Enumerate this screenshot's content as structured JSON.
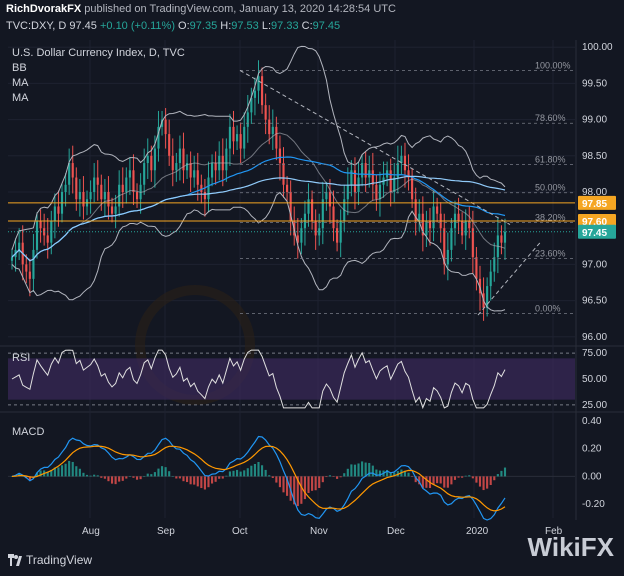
{
  "header": {
    "author": "RichDvorakFX",
    "published_text": "published on TradingView.com, January 13, 2020 14:28:54 UTC",
    "symbol": "TVC:DXY, D",
    "last": "97.45",
    "change": "+0.10 (+0.11%)",
    "open_label": "O:",
    "open": "97.35",
    "high_label": "H:",
    "high": "97.53",
    "low_label": "L:",
    "low": "97.33",
    "close_label": "C:",
    "close": "97.45"
  },
  "pane_labels": {
    "title": "U.S. Dollar Currency Index, D, TVC",
    "bb": "BB",
    "ma1": "MA",
    "ma2": "MA",
    "rsi": "RSI",
    "macd": "MACD"
  },
  "footer": {
    "brand": "TradingView",
    "watermark": "WikiFX"
  },
  "colors": {
    "background": "#131722",
    "up": "#26a69a",
    "down": "#ef5350",
    "bb": "#b2b5be",
    "ma_fast": "#2196f3",
    "ma_slow": "#90caf9",
    "resistance": "#f5a623",
    "rsi": "#e0e0e0",
    "rsi_band": "#3b2a5a",
    "macd_line": "#2196f3",
    "signal_line": "#ff9800"
  },
  "chart_data": [
    {
      "type": "candlestick",
      "name": "price",
      "x": [
        "Aug",
        "Sep",
        "Oct",
        "Nov",
        "Dec",
        "2020",
        "Feb"
      ],
      "ylim": [
        95.9,
        100.1
      ],
      "yticks": [
        "100.00",
        "99.50",
        "99.00",
        "98.50",
        "98.00",
        "97.50",
        "97.00",
        "96.50",
        "96.00"
      ],
      "ytick_values": [
        100.0,
        99.5,
        99.0,
        98.5,
        98.0,
        97.5,
        97.0,
        96.5,
        96.0
      ],
      "price_tags": [
        {
          "label": "97.85",
          "value": 97.85
        },
        {
          "label": "97.60",
          "value": 97.6
        },
        {
          "label": "97.45",
          "value": 97.45
        }
      ],
      "fibonacci": [
        {
          "label": "100.00%",
          "value": 99.68
        },
        {
          "label": "78.60%",
          "value": 98.95
        },
        {
          "label": "61.80%",
          "value": 98.38
        },
        {
          "label": "50.00%",
          "value": 97.99
        },
        {
          "label": "38.20%",
          "value": 97.58
        },
        {
          "label": "23.60%",
          "value": 97.08
        },
        {
          "label": "0.00%",
          "value": 96.32
        }
      ],
      "closes": [
        97.1,
        97.2,
        97.3,
        97.0,
        96.9,
        96.8,
        97.2,
        97.6,
        97.5,
        97.4,
        97.3,
        97.6,
        97.8,
        97.7,
        98.0,
        98.1,
        98.4,
        98.2,
        97.9,
        98.0,
        97.8,
        97.9,
        98.0,
        98.2,
        98.1,
        97.9,
        98.0,
        97.8,
        97.7,
        97.8,
        98.1,
        98.0,
        98.2,
        98.3,
        98.0,
        97.9,
        98.1,
        98.4,
        98.5,
        98.3,
        98.6,
        98.9,
        99.0,
        98.8,
        98.5,
        98.3,
        98.4,
        98.6,
        98.3,
        98.4,
        98.2,
        98.3,
        98.1,
        98.0,
        97.9,
        98.2,
        98.4,
        98.3,
        98.5,
        98.3,
        98.6,
        98.9,
        98.7,
        98.8,
        98.6,
        98.9,
        99.1,
        99.3,
        99.4,
        99.6,
        99.2,
        99.0,
        98.8,
        98.9,
        98.6,
        98.4,
        98.1,
        98.0,
        97.6,
        97.4,
        97.3,
        97.5,
        97.7,
        97.9,
        97.6,
        97.4,
        97.5,
        97.9,
        98.0,
        97.8,
        97.5,
        97.3,
        97.6,
        97.9,
        98.1,
        98.3,
        98.0,
        98.2,
        98.4,
        98.2,
        98.3,
        98.1,
        97.9,
        98.1,
        98.2,
        98.3,
        98.0,
        98.2,
        98.4,
        98.5,
        98.3,
        98.2,
        97.9,
        97.6,
        97.7,
        97.4,
        97.6,
        97.5,
        97.8,
        97.7,
        97.5,
        97.0,
        97.2,
        97.5,
        97.7,
        97.6,
        97.4,
        97.6,
        97.5,
        97.1,
        96.8,
        96.6,
        96.4,
        96.7,
        96.9,
        97.1,
        97.4,
        97.3,
        97.45
      ],
      "bb_upper_color": "#b2b5be"
    },
    {
      "type": "line",
      "name": "RSI",
      "ylim": [
        20,
        80
      ],
      "yticks": [
        "75.00",
        "50.00",
        "25.00"
      ],
      "ytick_values": [
        75,
        50,
        25
      ],
      "band": [
        30,
        70
      ]
    },
    {
      "type": "bar",
      "name": "MACD",
      "ylim": [
        -0.3,
        0.45
      ],
      "yticks": [
        "0.40",
        "0.20",
        "0.00",
        "-0.20"
      ],
      "ytick_values": [
        0.4,
        0.2,
        0.0,
        -0.2
      ]
    }
  ]
}
